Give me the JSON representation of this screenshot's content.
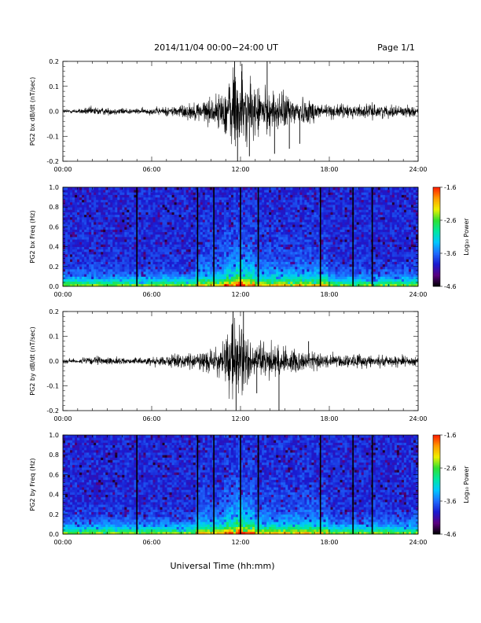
{
  "header": {
    "title": "2014/11/04  00:00−24:00 UT",
    "page": "Page 1/1"
  },
  "footer": {
    "xlabel": "Universal Time (hh:mm)"
  },
  "colorbar": {
    "label": "Log₁₀ Power",
    "ticks": [
      "-1.6",
      "-2.6",
      "-3.6",
      "-4.6"
    ],
    "range": [
      -4.6,
      -1.6
    ],
    "colormap": [
      "#000000",
      "#5a0080",
      "#1a1ad0",
      "#1e6cff",
      "#00c8ff",
      "#00e8a0",
      "#30e030",
      "#f0f000",
      "#ff9a00",
      "#ff1a00"
    ]
  },
  "chart_data": [
    {
      "type": "line",
      "name": "PG2 bx waveform",
      "ylabel": "PG2 bx dB/dt (nT/sec)",
      "xlim": [
        0,
        24
      ],
      "ylim": [
        -0.2,
        0.2
      ],
      "x_ticks": [
        "00:00",
        "06:00",
        "12:00",
        "18:00",
        "24:00"
      ],
      "y_ticks": [
        "0.2",
        "0.1",
        "0.0",
        "-0.1",
        "-0.2"
      ],
      "envelope": {
        "x": [
          0,
          1,
          2,
          3,
          4,
          5,
          6,
          7,
          8,
          9,
          10,
          10.5,
          11,
          11.5,
          12,
          12.5,
          13,
          13.5,
          14,
          15,
          16,
          17,
          18,
          19,
          20,
          21,
          22,
          23,
          24
        ],
        "amplitude": [
          0.01,
          0.01,
          0.02,
          0.015,
          0.015,
          0.012,
          0.015,
          0.02,
          0.03,
          0.04,
          0.06,
          0.07,
          0.11,
          0.2,
          0.17,
          0.12,
          0.12,
          0.1,
          0.09,
          0.08,
          0.06,
          0.05,
          0.03,
          0.03,
          0.03,
          0.03,
          0.025,
          0.025,
          0.02
        ]
      },
      "spikes": [
        {
          "x": 11.6,
          "y": 0.2
        },
        {
          "x": 11.8,
          "y": -0.2
        },
        {
          "x": 12.1,
          "y": 0.19
        },
        {
          "x": 13.8,
          "y": 0.2
        },
        {
          "x": 14.3,
          "y": -0.17
        },
        {
          "x": 15.3,
          "y": -0.15
        },
        {
          "x": 16.0,
          "y": -0.13
        },
        {
          "x": 12.6,
          "y": -0.18
        }
      ]
    },
    {
      "type": "heatmap",
      "name": "PG2 bx spectrogram",
      "ylabel": "PG2 bx Freq (Hz)",
      "xlim": [
        0,
        24
      ],
      "ylim": [
        0,
        1
      ],
      "x_ticks": [
        "00:00",
        "06:00",
        "12:00",
        "18:00",
        "24:00"
      ],
      "y_ticks": [
        "1.0",
        "0.8",
        "0.6",
        "0.4",
        "0.2",
        "0.0"
      ],
      "gaps_hours": [
        5.0,
        9.1,
        10.2,
        12.0,
        13.2,
        17.4,
        19.6,
        20.9
      ],
      "power_peak_hours": [
        11.7,
        12.2
      ]
    },
    {
      "type": "line",
      "name": "PG2 by waveform",
      "ylabel": "PG2 by dB/dt (nT/sec)",
      "xlim": [
        0,
        24
      ],
      "ylim": [
        -0.2,
        0.2
      ],
      "x_ticks": [
        "00:00",
        "06:00",
        "12:00",
        "18:00",
        "24:00"
      ],
      "y_ticks": [
        "0.2",
        "0.1",
        "0.0",
        "-0.1",
        "-0.2"
      ],
      "envelope": {
        "x": [
          0,
          1,
          2,
          3,
          4,
          5,
          6,
          7,
          8,
          9,
          10,
          10.5,
          11,
          11.5,
          12,
          12.5,
          13,
          13.5,
          14,
          15,
          16,
          17,
          18,
          19,
          20,
          21,
          22,
          23,
          24
        ],
        "amplitude": [
          0.01,
          0.01,
          0.02,
          0.015,
          0.015,
          0.012,
          0.02,
          0.025,
          0.03,
          0.035,
          0.05,
          0.06,
          0.1,
          0.2,
          0.15,
          0.1,
          0.09,
          0.08,
          0.07,
          0.06,
          0.05,
          0.04,
          0.03,
          0.03,
          0.03,
          0.025,
          0.025,
          0.025,
          0.02
        ]
      },
      "spikes": [
        {
          "x": 11.5,
          "y": 0.2
        },
        {
          "x": 11.7,
          "y": -0.2
        },
        {
          "x": 12.2,
          "y": 0.2
        },
        {
          "x": 14.6,
          "y": -0.2
        },
        {
          "x": 13.1,
          "y": -0.13
        },
        {
          "x": 16.6,
          "y": 0.08
        }
      ]
    },
    {
      "type": "heatmap",
      "name": "PG2 by spectrogram",
      "ylabel": "PG2 by Freq (Hz)",
      "xlim": [
        0,
        24
      ],
      "ylim": [
        0,
        1
      ],
      "x_ticks": [
        "00:00",
        "06:00",
        "12:00",
        "18:00",
        "24:00"
      ],
      "y_ticks": [
        "1.0",
        "0.8",
        "0.6",
        "0.4",
        "0.2",
        "0.0"
      ],
      "gaps_hours": [
        5.0,
        9.1,
        10.2,
        12.0,
        13.2,
        17.4,
        19.6,
        20.9
      ],
      "power_peak_hours": [
        11.7,
        12.2
      ]
    }
  ]
}
